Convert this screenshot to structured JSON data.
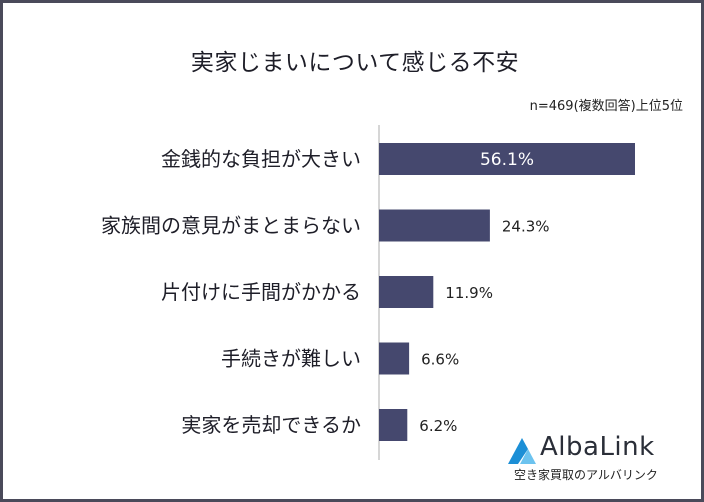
{
  "title": "実家じまいについて感じる不安",
  "note": "n=469(複数回答)上位5位",
  "brand": {
    "name": "AlbaLink",
    "tagline": "空き家買取のアルバリンク",
    "icon": "triangle-mountain-logo"
  },
  "colors": {
    "bar": "#45486e",
    "axis": "#c8c8c8",
    "label": "#1e1e28",
    "inside_label": "#ffffff",
    "outside_label": "#222222",
    "frame": "#4a4a5a",
    "logo_blue": "#1c8fd6",
    "logo_dark": "#2a2e38"
  },
  "chart_data": {
    "type": "bar",
    "orientation": "horizontal",
    "categories": [
      "金銭的な負担が大きい",
      "家族間の意見がまとまらない",
      "片付けに手間がかかる",
      "手続きが難しい",
      "実家を売却できるか"
    ],
    "values": [
      56.1,
      24.3,
      11.9,
      6.6,
      6.2
    ],
    "value_labels": [
      "56.1%",
      "24.3%",
      "11.9%",
      "6.6%",
      "6.2%"
    ],
    "unit": "%",
    "xlim": [
      0,
      56.1
    ],
    "grid": false,
    "legend": "none"
  }
}
